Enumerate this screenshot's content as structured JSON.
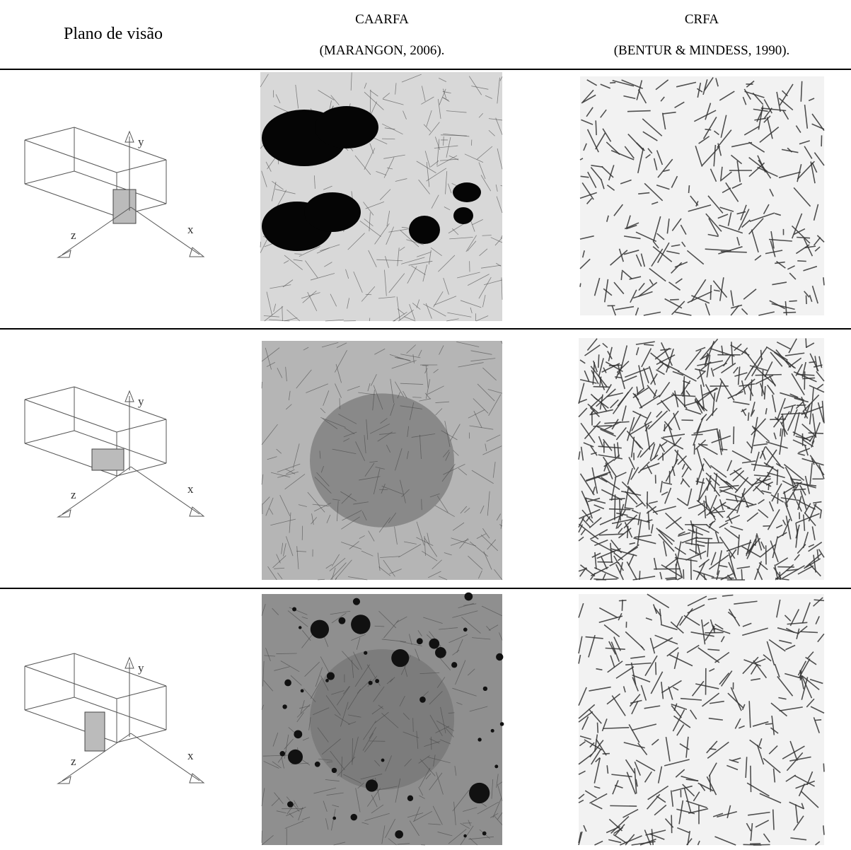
{
  "table": {
    "headers": [
      "Plano de visão",
      "CAARFA",
      "(MARANGON, 2006).",
      "CRFA",
      "(BENTUR & MINDESS, 1990)."
    ],
    "rows": [
      {
        "axes": [
          "y",
          "z",
          "x"
        ]
      },
      {
        "axes": [
          "y",
          "z",
          "x"
        ]
      },
      {
        "axes": [
          "y",
          "z",
          "x"
        ]
      }
    ]
  }
}
